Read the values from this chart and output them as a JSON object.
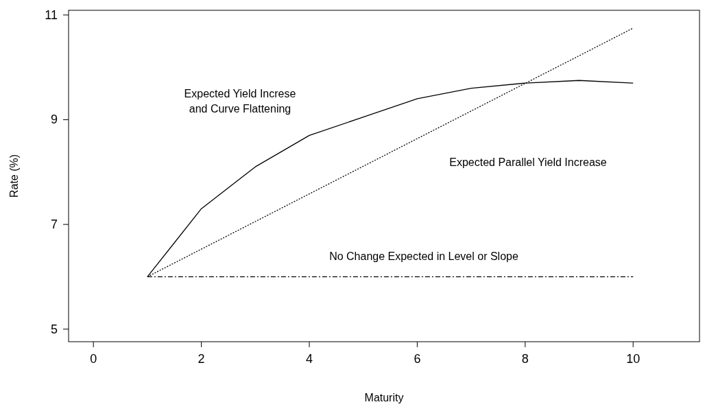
{
  "chart_data": {
    "type": "line",
    "xlabel": "Maturity",
    "ylabel": "Rate (%)",
    "xlim": [
      -0.46,
      11.23
    ],
    "ylim": [
      4.76,
      11.09
    ],
    "xticks": [
      0,
      2,
      4,
      6,
      8,
      10
    ],
    "yticks": [
      5,
      7,
      9,
      11
    ],
    "grid": false,
    "series": [
      {
        "color": "#000000",
        "line_style": "solid",
        "x": [
          1,
          2,
          3,
          4,
          5,
          6,
          7,
          8,
          9,
          10
        ],
        "values": [
          6,
          7.3,
          8.1,
          8.7,
          9.05,
          9.4,
          9.6,
          9.7,
          9.75,
          9.7
        ]
      },
      {
        "color": "#000000",
        "line_style": "dotted",
        "x": [
          1,
          10
        ],
        "values": [
          6,
          10.75
        ]
      },
      {
        "color": "#000000",
        "line_style": "dashdot",
        "x": [
          1,
          10
        ],
        "values": [
          6,
          6
        ]
      }
    ],
    "annotations": [
      "Expected Yield Increse\nand Curve Flattening",
      "Expected Parallel Yield Increase",
      "No Change Expected in Level or Slope"
    ]
  }
}
